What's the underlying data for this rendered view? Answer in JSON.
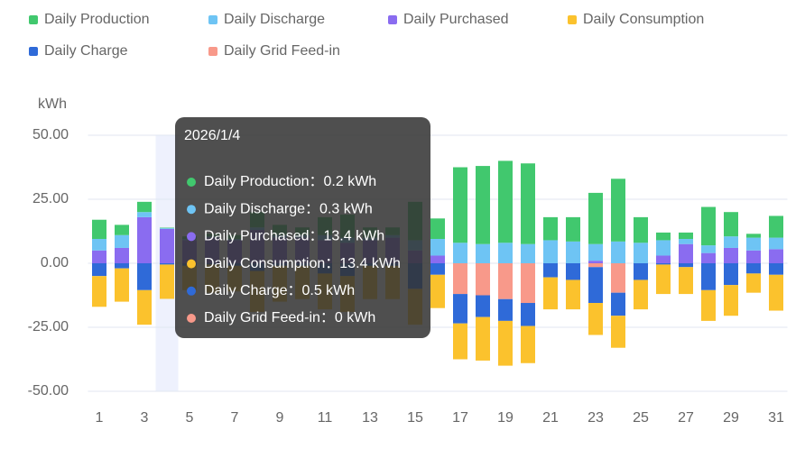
{
  "chart_data": {
    "type": "bar",
    "y_label": "kWh",
    "categories": [
      "1",
      null,
      "3",
      null,
      "5",
      null,
      "7",
      null,
      "9",
      null,
      "11",
      null,
      "13",
      null,
      "15",
      null,
      "17",
      null,
      "19",
      null,
      "21",
      null,
      "23",
      null,
      "25",
      null,
      "27",
      null,
      "29",
      null,
      "31"
    ],
    "ylim": [
      -50,
      50
    ],
    "yticks": [
      {
        "value": 50,
        "label": "50.00"
      },
      {
        "value": 25,
        "label": "25.00"
      },
      {
        "value": 0,
        "label": "0.00"
      },
      {
        "value": -25,
        "label": "-25.00"
      },
      {
        "value": -50,
        "label": "-50.00"
      }
    ],
    "grid": true,
    "stacked": true,
    "series": [
      {
        "name": "Daily Production",
        "color": "#41c86e",
        "values": [
          7.5,
          4,
          4,
          0.2,
          1,
          1,
          1.5,
          6,
          4,
          3,
          7,
          9,
          4,
          3,
          15,
          8,
          29.5,
          30.5,
          32,
          31.5,
          9,
          9.5,
          20,
          24.5,
          10,
          3,
          2.5,
          15,
          9.5,
          1.5,
          8.5
        ]
      },
      {
        "name": "Daily Discharge",
        "color": "#6ec4f4",
        "values": [
          4.5,
          5,
          2,
          0.3,
          0.5,
          0.5,
          0.5,
          1,
          1,
          1,
          2,
          2,
          1,
          1,
          4,
          6.5,
          8,
          7.5,
          8,
          7.5,
          9,
          8.5,
          6.5,
          8.5,
          8,
          6,
          2,
          3,
          4.5,
          5,
          4.5
        ]
      },
      {
        "name": "Daily Purchased",
        "color": "#8a6cf0",
        "values": [
          5,
          6,
          18,
          13.4,
          9,
          10,
          9,
          13,
          10,
          10,
          9,
          8,
          9,
          10,
          5,
          3,
          0,
          0,
          0,
          0,
          0,
          0,
          1,
          0,
          0,
          3,
          7.5,
          4,
          6,
          5,
          5.5
        ]
      },
      {
        "name": "Daily Consumption",
        "color": "#fbc22d",
        "values": [
          -12,
          -13,
          -13.5,
          -13.4,
          -9.5,
          -11,
          -10,
          -16,
          -14,
          -13,
          -14,
          -14,
          -13,
          -13,
          -14,
          -13,
          -14,
          -17,
          -17.5,
          -14.5,
          -12.5,
          -11.5,
          -12.5,
          -12.5,
          -11.5,
          -11.5,
          -10.5,
          -12,
          -12,
          -7.5,
          -14
        ]
      },
      {
        "name": "Daily Charge",
        "color": "#2f6ad8",
        "values": [
          -5,
          -2,
          -10.5,
          -0.5,
          -1,
          -0.5,
          -1,
          -3,
          -1,
          -1,
          -4,
          -5,
          -1,
          -1,
          -10,
          -4.5,
          -11.5,
          -8.5,
          -8.5,
          -9,
          -5.5,
          -6.5,
          -14,
          -9,
          -6.5,
          -0.5,
          -1.5,
          -10.5,
          -8.5,
          -4,
          -4.5
        ]
      },
      {
        "name": "Daily Grid Feed-in",
        "color": "#f8998a",
        "values": [
          0,
          0,
          0,
          0,
          0,
          0,
          0,
          0,
          0,
          0,
          0,
          0,
          0,
          0,
          0,
          0,
          -12,
          -12.5,
          -14,
          -15.5,
          0,
          0,
          -1.5,
          -11.5,
          0,
          0,
          0,
          0,
          0,
          0,
          0
        ]
      }
    ]
  },
  "tooltip": {
    "date": "2026/1/4",
    "items": [
      "Daily Production：0.2 kWh",
      "Daily Discharge：0.3 kWh",
      "Daily Purchased：13.4 kWh",
      "Daily Consumption：13.4 kWh",
      "Daily Charge：0.5 kWh",
      "Daily Grid Feed-in：0 kWh"
    ]
  }
}
